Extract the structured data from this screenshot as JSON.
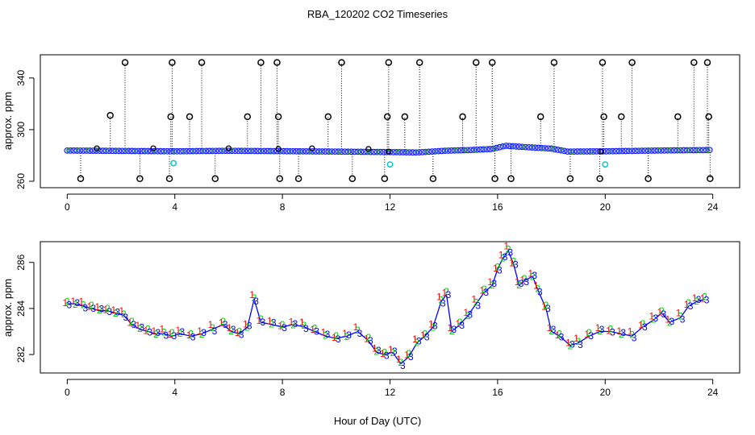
{
  "figure": {
    "title": "RBA_120202  CO2 Timeseries",
    "xlabel": "Hour of Day (UTC)"
  },
  "chart_data": [
    {
      "type": "scatter",
      "title": "RBA_120202  CO2 Timeseries",
      "xlabel": "",
      "ylabel": "approx. ppm",
      "xlim": [
        -1,
        25
      ],
      "ylim": [
        255,
        358
      ],
      "xticks": [
        0,
        4,
        8,
        12,
        16,
        20,
        24
      ],
      "yticks": [
        260,
        300,
        340
      ],
      "baseline": 284,
      "baseline_series": [
        {
          "x": 0,
          "y": 283.8
        },
        {
          "x": 2,
          "y": 283.5
        },
        {
          "x": 4,
          "y": 283.2
        },
        {
          "x": 6,
          "y": 283.6
        },
        {
          "x": 8,
          "y": 283.3
        },
        {
          "x": 10,
          "y": 283.0
        },
        {
          "x": 12,
          "y": 282.6
        },
        {
          "x": 13,
          "y": 282.3
        },
        {
          "x": 14,
          "y": 283.6
        },
        {
          "x": 15,
          "y": 284.2
        },
        {
          "x": 15.8,
          "y": 285.0
        },
        {
          "x": 16.3,
          "y": 287.5
        },
        {
          "x": 17,
          "y": 286.5
        },
        {
          "x": 18,
          "y": 285.3
        },
        {
          "x": 18.6,
          "y": 283.0
        },
        {
          "x": 20,
          "y": 283.2
        },
        {
          "x": 22,
          "y": 283.8
        },
        {
          "x": 24,
          "y": 284.2
        }
      ],
      "high_spikes": [
        {
          "x": 2.15,
          "y": 352
        },
        {
          "x": 3.9,
          "y": 352
        },
        {
          "x": 5.0,
          "y": 352
        },
        {
          "x": 7.2,
          "y": 352
        },
        {
          "x": 7.8,
          "y": 352
        },
        {
          "x": 10.2,
          "y": 352
        },
        {
          "x": 11.95,
          "y": 352
        },
        {
          "x": 13.1,
          "y": 352
        },
        {
          "x": 15.2,
          "y": 352
        },
        {
          "x": 15.8,
          "y": 352
        },
        {
          "x": 18.1,
          "y": 352
        },
        {
          "x": 19.9,
          "y": 352
        },
        {
          "x": 21.0,
          "y": 352
        },
        {
          "x": 23.3,
          "y": 352
        },
        {
          "x": 23.8,
          "y": 352
        }
      ],
      "mid_spikes": [
        {
          "x": 1.6,
          "y": 311
        },
        {
          "x": 3.85,
          "y": 310
        },
        {
          "x": 4.55,
          "y": 310
        },
        {
          "x": 6.7,
          "y": 310
        },
        {
          "x": 7.85,
          "y": 310
        },
        {
          "x": 9.7,
          "y": 310
        },
        {
          "x": 11.9,
          "y": 310
        },
        {
          "x": 12.55,
          "y": 310
        },
        {
          "x": 14.7,
          "y": 310
        },
        {
          "x": 17.6,
          "y": 310
        },
        {
          "x": 19.95,
          "y": 310
        },
        {
          "x": 20.6,
          "y": 310
        },
        {
          "x": 22.7,
          "y": 310
        },
        {
          "x": 23.85,
          "y": 310
        }
      ],
      "low_spikes": [
        {
          "x": 0.5,
          "y": 262
        },
        {
          "x": 2.7,
          "y": 262
        },
        {
          "x": 3.8,
          "y": 262
        },
        {
          "x": 5.5,
          "y": 262
        },
        {
          "x": 7.9,
          "y": 262
        },
        {
          "x": 8.6,
          "y": 262
        },
        {
          "x": 10.6,
          "y": 262
        },
        {
          "x": 11.8,
          "y": 262
        },
        {
          "x": 13.6,
          "y": 262
        },
        {
          "x": 15.9,
          "y": 262
        },
        {
          "x": 16.5,
          "y": 262
        },
        {
          "x": 18.7,
          "y": 262
        },
        {
          "x": 19.8,
          "y": 262
        },
        {
          "x": 21.6,
          "y": 262
        },
        {
          "x": 23.9,
          "y": 262
        }
      ],
      "small_markers": [
        {
          "x": 1.1,
          "y": 285.5
        },
        {
          "x": 3.2,
          "y": 285.5
        },
        {
          "x": 6.0,
          "y": 285.5
        },
        {
          "x": 7.85,
          "y": 285
        },
        {
          "x": 9.1,
          "y": 285.5
        },
        {
          "x": 11.2,
          "y": 285
        },
        {
          "x": 11.95,
          "y": 283
        },
        {
          "x": 19.85,
          "y": 283
        }
      ],
      "cyan_markers": [
        {
          "x": 3.95,
          "y": 274
        },
        {
          "x": 12.0,
          "y": 273
        },
        {
          "x": 20.0,
          "y": 273
        }
      ],
      "spike_label": "approx. ppm"
    },
    {
      "type": "line",
      "title": "",
      "xlabel": "Hour of Day (UTC)",
      "ylabel": "approx. ppm",
      "xlim": [
        -1,
        25
      ],
      "ylim": [
        281.2,
        286.9
      ],
      "xticks": [
        0,
        4,
        8,
        12,
        16,
        20,
        24
      ],
      "yticks": [
        282,
        284,
        286
      ],
      "series": [
        {
          "name": "1",
          "color": "#ff0000",
          "offset": 0.12
        },
        {
          "name": "2",
          "color": "#00cc00",
          "offset": 0.06
        },
        {
          "name": "3",
          "color": "#0000ff",
          "offset": 0.0
        }
      ],
      "line_color": "#0000ff",
      "points": [
        {
          "x": 0.0,
          "y": 284.2
        },
        {
          "x": 0.3,
          "y": 284.2
        },
        {
          "x": 0.6,
          "y": 284.1
        },
        {
          "x": 0.9,
          "y": 284.0
        },
        {
          "x": 1.2,
          "y": 283.9
        },
        {
          "x": 1.5,
          "y": 283.9
        },
        {
          "x": 1.8,
          "y": 283.8
        },
        {
          "x": 2.1,
          "y": 283.7
        },
        {
          "x": 2.4,
          "y": 283.3
        },
        {
          "x": 2.7,
          "y": 283.1
        },
        {
          "x": 3.0,
          "y": 283.0
        },
        {
          "x": 3.3,
          "y": 282.9
        },
        {
          "x": 3.6,
          "y": 282.9
        },
        {
          "x": 3.9,
          "y": 282.8
        },
        {
          "x": 4.2,
          "y": 282.9
        },
        {
          "x": 4.6,
          "y": 282.8
        },
        {
          "x": 5.0,
          "y": 282.9
        },
        {
          "x": 5.4,
          "y": 283.1
        },
        {
          "x": 5.8,
          "y": 283.3
        },
        {
          "x": 6.1,
          "y": 283.0
        },
        {
          "x": 6.4,
          "y": 282.9
        },
        {
          "x": 6.7,
          "y": 283.2
        },
        {
          "x": 6.95,
          "y": 284.4
        },
        {
          "x": 7.2,
          "y": 283.4
        },
        {
          "x": 7.6,
          "y": 283.3
        },
        {
          "x": 8.0,
          "y": 283.2
        },
        {
          "x": 8.4,
          "y": 283.3
        },
        {
          "x": 8.8,
          "y": 283.2
        },
        {
          "x": 9.2,
          "y": 283.0
        },
        {
          "x": 9.6,
          "y": 282.8
        },
        {
          "x": 10.0,
          "y": 282.7
        },
        {
          "x": 10.4,
          "y": 282.8
        },
        {
          "x": 10.8,
          "y": 283.0
        },
        {
          "x": 11.2,
          "y": 282.6
        },
        {
          "x": 11.5,
          "y": 282.1
        },
        {
          "x": 11.8,
          "y": 282.0
        },
        {
          "x": 12.1,
          "y": 282.1
        },
        {
          "x": 12.4,
          "y": 281.6
        },
        {
          "x": 12.7,
          "y": 281.9
        },
        {
          "x": 13.0,
          "y": 282.5
        },
        {
          "x": 13.3,
          "y": 282.8
        },
        {
          "x": 13.6,
          "y": 283.2
        },
        {
          "x": 13.9,
          "y": 284.3
        },
        {
          "x": 14.1,
          "y": 284.6
        },
        {
          "x": 14.3,
          "y": 283.0
        },
        {
          "x": 14.6,
          "y": 283.3
        },
        {
          "x": 14.9,
          "y": 283.7
        },
        {
          "x": 15.2,
          "y": 284.2
        },
        {
          "x": 15.5,
          "y": 284.7
        },
        {
          "x": 15.8,
          "y": 285.0
        },
        {
          "x": 16.0,
          "y": 285.7
        },
        {
          "x": 16.2,
          "y": 286.2
        },
        {
          "x": 16.4,
          "y": 286.5
        },
        {
          "x": 16.6,
          "y": 285.9
        },
        {
          "x": 16.8,
          "y": 285.0
        },
        {
          "x": 17.0,
          "y": 285.2
        },
        {
          "x": 17.3,
          "y": 285.4
        },
        {
          "x": 17.5,
          "y": 284.8
        },
        {
          "x": 17.8,
          "y": 284.0
        },
        {
          "x": 18.0,
          "y": 283.0
        },
        {
          "x": 18.3,
          "y": 282.8
        },
        {
          "x": 18.7,
          "y": 282.4
        },
        {
          "x": 19.0,
          "y": 282.5
        },
        {
          "x": 19.4,
          "y": 282.8
        },
        {
          "x": 19.8,
          "y": 283.0
        },
        {
          "x": 20.2,
          "y": 283.0
        },
        {
          "x": 20.6,
          "y": 282.9
        },
        {
          "x": 21.0,
          "y": 282.8
        },
        {
          "x": 21.4,
          "y": 283.2
        },
        {
          "x": 21.8,
          "y": 283.5
        },
        {
          "x": 22.1,
          "y": 283.8
        },
        {
          "x": 22.4,
          "y": 283.4
        },
        {
          "x": 22.8,
          "y": 283.6
        },
        {
          "x": 23.1,
          "y": 284.1
        },
        {
          "x": 23.4,
          "y": 284.3
        },
        {
          "x": 23.7,
          "y": 284.4
        }
      ]
    }
  ]
}
